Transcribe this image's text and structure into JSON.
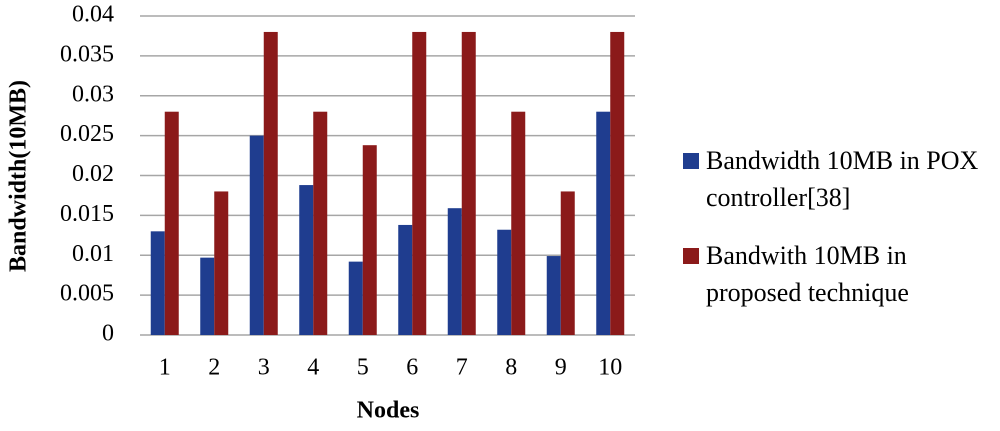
{
  "chart_data": {
    "type": "bar",
    "y_label": "Bandwidth(10MB)",
    "x_label": "Nodes",
    "categories": [
      "1",
      "2",
      "3",
      "4",
      "5",
      "6",
      "7",
      "8",
      "9",
      "10"
    ],
    "series": [
      {
        "name": "Bandwidth 10MB in POX controller[38]",
        "color": "#1f3d8f",
        "values": [
          0.013,
          0.0097,
          0.025,
          0.0188,
          0.0092,
          0.0138,
          0.0159,
          0.0132,
          0.0099,
          0.028
        ]
      },
      {
        "name": "Bandwith 10MB in proposed technique",
        "color": "#8b1a1a",
        "values": [
          0.028,
          0.018,
          0.038,
          0.028,
          0.0238,
          0.038,
          0.038,
          0.028,
          0.018,
          0.038
        ]
      }
    ],
    "ylim": [
      0,
      0.04
    ],
    "yticks": [
      0,
      0.005,
      0.01,
      0.015,
      0.02,
      0.025,
      0.03,
      0.035,
      0.04
    ],
    "grid": true
  }
}
